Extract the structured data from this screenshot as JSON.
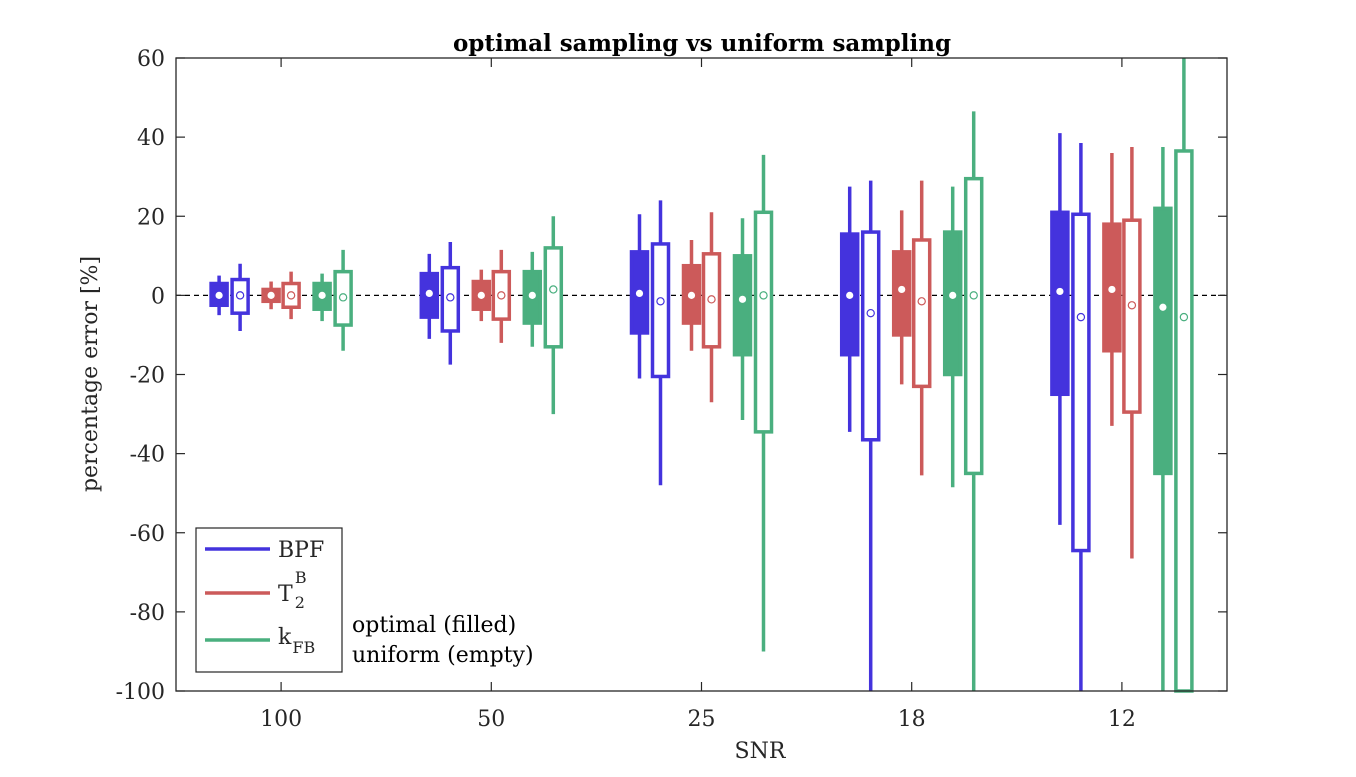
{
  "chart_data": {
    "type": "boxplot",
    "title": "optimal sampling vs uniform sampling",
    "xlabel": "SNR",
    "ylabel": "percentage error [%]",
    "ylim": [
      -100,
      60
    ],
    "yticks": [
      60,
      40,
      20,
      0,
      -20,
      -40,
      -60,
      -80,
      -100
    ],
    "ytick_labels": [
      "60",
      "40",
      "20",
      "0",
      "-20",
      "-40",
      "-60",
      "-80",
      "-100"
    ],
    "categories": [
      "100",
      "50",
      "25",
      "18",
      "12"
    ],
    "reference_line": 0,
    "legend": {
      "position": "bottom-left",
      "entries": [
        {
          "name": "BPF",
          "color": "#4433dd",
          "text": "BPF"
        },
        {
          "name": "T2B",
          "color": "#cc5a5a",
          "base": "T",
          "sub": "2",
          "sup": "B"
        },
        {
          "name": "kFB",
          "color": "#4aaf7f",
          "base": "k",
          "sub": "FB"
        }
      ],
      "note_filled": "optimal (filled)",
      "note_empty": "uniform (empty)"
    },
    "series": [
      {
        "name": "BPF",
        "color": "#4433dd",
        "optimal": [
          {
            "whisker_low": -5,
            "q1": -2.5,
            "q3": 3,
            "whisker_high": 5,
            "mean": 0
          },
          {
            "whisker_low": -11,
            "q1": -5.5,
            "q3": 5.5,
            "whisker_high": 10.5,
            "mean": 0.5
          },
          {
            "whisker_low": -21,
            "q1": -9.5,
            "q3": 11,
            "whisker_high": 20.5,
            "mean": 0.5
          },
          {
            "whisker_low": -34.5,
            "q1": -15,
            "q3": 15.5,
            "whisker_high": 27.5,
            "mean": 0
          },
          {
            "whisker_low": -58,
            "q1": -25,
            "q3": 21,
            "whisker_high": 41,
            "mean": 1
          }
        ],
        "uniform": [
          {
            "whisker_low": -9,
            "q1": -4.5,
            "q3": 4,
            "whisker_high": 8,
            "mean": 0
          },
          {
            "whisker_low": -17.5,
            "q1": -9,
            "q3": 7,
            "whisker_high": 13.5,
            "mean": -0.5
          },
          {
            "whisker_low": -48,
            "q1": -20.5,
            "q3": 13,
            "whisker_high": 24,
            "mean": -1.5
          },
          {
            "whisker_low": -100,
            "q1": -36.5,
            "q3": 16,
            "whisker_high": 29,
            "mean": -4.5
          },
          {
            "whisker_low": -100,
            "q1": -64.5,
            "q3": 20.5,
            "whisker_high": 38.5,
            "mean": -5.5
          }
        ]
      },
      {
        "name": "T2B",
        "color": "#cc5a5a",
        "optimal": [
          {
            "whisker_low": -3.5,
            "q1": -1.5,
            "q3": 1.5,
            "whisker_high": 3.5,
            "mean": 0
          },
          {
            "whisker_low": -6.5,
            "q1": -3.5,
            "q3": 3.5,
            "whisker_high": 6.5,
            "mean": 0
          },
          {
            "whisker_low": -14,
            "q1": -7,
            "q3": 7.5,
            "whisker_high": 14,
            "mean": 0
          },
          {
            "whisker_low": -22.5,
            "q1": -10,
            "q3": 11,
            "whisker_high": 21.5,
            "mean": 1.5
          },
          {
            "whisker_low": -33,
            "q1": -14,
            "q3": 18,
            "whisker_high": 36,
            "mean": 1.5
          }
        ],
        "uniform": [
          {
            "whisker_low": -6,
            "q1": -3,
            "q3": 3,
            "whisker_high": 6,
            "mean": 0
          },
          {
            "whisker_low": -12,
            "q1": -6,
            "q3": 6,
            "whisker_high": 11.5,
            "mean": 0
          },
          {
            "whisker_low": -27,
            "q1": -13,
            "q3": 10.5,
            "whisker_high": 21,
            "mean": -1
          },
          {
            "whisker_low": -45.5,
            "q1": -23,
            "q3": 14,
            "whisker_high": 29,
            "mean": -1.5
          },
          {
            "whisker_low": -66.5,
            "q1": -29.5,
            "q3": 19,
            "whisker_high": 37.5,
            "mean": -2.5
          }
        ]
      },
      {
        "name": "kFB",
        "color": "#4aaf7f",
        "optimal": [
          {
            "whisker_low": -6.5,
            "q1": -3.5,
            "q3": 3,
            "whisker_high": 5.5,
            "mean": 0
          },
          {
            "whisker_low": -13,
            "q1": -7,
            "q3": 6,
            "whisker_high": 11,
            "mean": 0
          },
          {
            "whisker_low": -31.5,
            "q1": -15,
            "q3": 10,
            "whisker_high": 19.5,
            "mean": -1
          },
          {
            "whisker_low": -48.5,
            "q1": -20,
            "q3": 16,
            "whisker_high": 27.5,
            "mean": 0
          },
          {
            "whisker_low": -100,
            "q1": -45,
            "q3": 22,
            "whisker_high": 37.5,
            "mean": -3
          }
        ],
        "uniform": [
          {
            "whisker_low": -14,
            "q1": -7.5,
            "q3": 6,
            "whisker_high": 11.5,
            "mean": -0.5
          },
          {
            "whisker_low": -30,
            "q1": -13,
            "q3": 12,
            "whisker_high": 20,
            "mean": 1.5
          },
          {
            "whisker_low": -90,
            "q1": -34.5,
            "q3": 21,
            "whisker_high": 35.5,
            "mean": 0
          },
          {
            "whisker_low": -100,
            "q1": -45,
            "q3": 29.5,
            "whisker_high": 46.5,
            "mean": 0
          },
          {
            "whisker_low": -100,
            "q1": -100,
            "q3": 36.5,
            "whisker_high": 60,
            "mean": -5.5
          }
        ]
      }
    ]
  }
}
